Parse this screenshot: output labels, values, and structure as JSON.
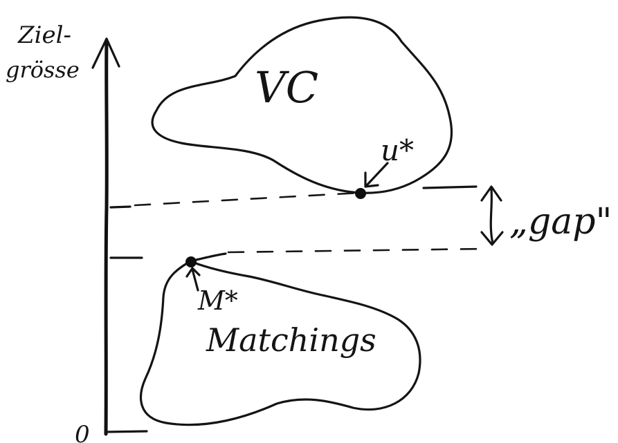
{
  "diagram": {
    "axis": {
      "label_line1": "Ziel-",
      "label_line2": "grösse",
      "origin_label": "0"
    },
    "regions": {
      "upper": "VC",
      "lower": "Matchings"
    },
    "points": {
      "upper_optimum": "u*",
      "lower_optimum": "M*"
    },
    "gap_label": "„gap\""
  }
}
